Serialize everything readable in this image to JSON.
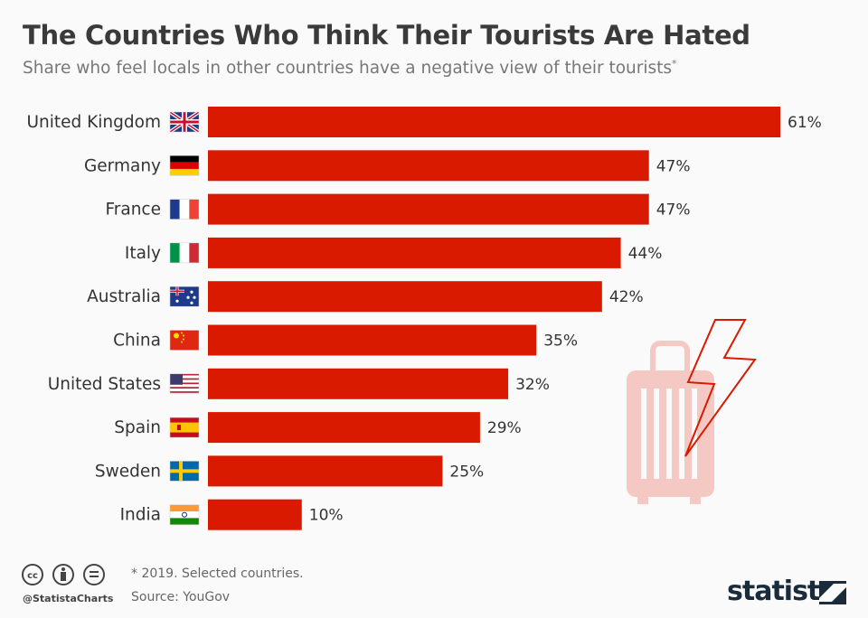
{
  "title": "The Countries Who Think Their Tourists Are Hated",
  "subtitle": "Share who feel locals in other countries have a negative view of their tourists",
  "subtitle_marker": "*",
  "footer": {
    "note": "* 2019. Selected countries.",
    "source": "Source: YouGov",
    "handle": "@StatistaCharts",
    "logo": "statista",
    "license_icons": [
      "cc-icon",
      "attribution-icon",
      "no-derivatives-icon"
    ]
  },
  "colors": {
    "bar": "#d91a00",
    "icon_light": "#f5c9c3",
    "bolt": "#d91a00"
  },
  "chart_data": {
    "type": "bar",
    "orientation": "horizontal",
    "categories": [
      "United Kingdom",
      "Germany",
      "France",
      "Italy",
      "Australia",
      "China",
      "United States",
      "Spain",
      "Sweden",
      "India"
    ],
    "values": [
      61,
      47,
      47,
      44,
      42,
      35,
      32,
      29,
      25,
      10
    ],
    "labels": [
      "61%",
      "47%",
      "47%",
      "44%",
      "42%",
      "35%",
      "32%",
      "29%",
      "25%",
      "10%"
    ],
    "unit": "%",
    "xlim": [
      0,
      61
    ],
    "grid": false
  }
}
